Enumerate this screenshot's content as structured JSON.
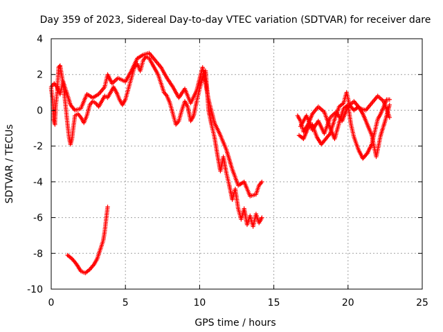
{
  "chart_data": {
    "type": "scatter",
    "title": "Day 359 of 2023, Sidereal Day-to-day VTEC variation (SDTVAR) for receiver dare",
    "xlabel": "GPS time / hours",
    "ylabel": "SDTVAR / TECUs",
    "xlim": [
      0,
      25
    ],
    "ylim": [
      -10,
      4
    ],
    "xticks": [
      0,
      5,
      10,
      15,
      20,
      25
    ],
    "yticks": [
      -10,
      -8,
      -6,
      -4,
      -2,
      0,
      2,
      4
    ],
    "grid": true,
    "marker": "+",
    "color": "#ff0000",
    "series": [
      {
        "name": "SDTVAR",
        "segments": [
          [
            [
              0.0,
              1.2
            ],
            [
              0.1,
              0.6
            ],
            [
              0.15,
              -0.5
            ],
            [
              0.25,
              -0.8
            ],
            [
              0.3,
              0.2
            ],
            [
              0.4,
              1.0
            ],
            [
              0.5,
              2.4
            ],
            [
              0.6,
              2.5
            ],
            [
              0.7,
              2.0
            ],
            [
              0.8,
              1.5
            ],
            [
              0.9,
              0.8
            ],
            [
              1.0,
              0.0
            ],
            [
              1.1,
              -0.8
            ],
            [
              1.2,
              -1.5
            ],
            [
              1.3,
              -1.9
            ],
            [
              1.4,
              -1.6
            ],
            [
              1.5,
              -0.9
            ],
            [
              1.6,
              -0.3
            ],
            [
              1.8,
              -0.2
            ],
            [
              2.0,
              -0.4
            ],
            [
              2.2,
              -0.7
            ],
            [
              2.4,
              -0.3
            ],
            [
              2.6,
              0.3
            ],
            [
              2.8,
              0.5
            ],
            [
              3.0,
              0.4
            ],
            [
              3.2,
              0.2
            ],
            [
              3.4,
              0.5
            ],
            [
              3.6,
              0.8
            ],
            [
              3.8,
              0.7
            ],
            [
              4.0,
              1.0
            ],
            [
              4.2,
              1.3
            ],
            [
              4.4,
              1.0
            ],
            [
              4.6,
              0.6
            ],
            [
              4.8,
              0.3
            ],
            [
              5.0,
              0.6
            ],
            [
              5.2,
              1.2
            ],
            [
              5.4,
              1.8
            ],
            [
              5.6,
              2.4
            ],
            [
              5.8,
              2.6
            ],
            [
              6.0,
              2.2
            ],
            [
              6.2,
              2.8
            ],
            [
              6.4,
              3.0
            ],
            [
              6.6,
              2.9
            ],
            [
              6.8,
              2.6
            ],
            [
              7.0,
              2.3
            ],
            [
              7.2,
              2.0
            ],
            [
              7.4,
              1.5
            ],
            [
              7.6,
              1.0
            ],
            [
              7.8,
              0.8
            ],
            [
              8.0,
              0.4
            ],
            [
              8.2,
              -0.2
            ],
            [
              8.4,
              -0.8
            ],
            [
              8.6,
              -0.6
            ],
            [
              8.8,
              0.0
            ],
            [
              9.0,
              0.5
            ],
            [
              9.2,
              0.2
            ],
            [
              9.4,
              -0.6
            ],
            [
              9.6,
              -0.3
            ],
            [
              9.8,
              0.5
            ],
            [
              10.0,
              1.2
            ],
            [
              10.2,
              1.8
            ],
            [
              10.4,
              2.2
            ],
            [
              10.5,
              1.2
            ],
            [
              10.6,
              0.0
            ],
            [
              10.8,
              -0.8
            ],
            [
              11.0,
              -1.5
            ],
            [
              11.2,
              -2.5
            ],
            [
              11.4,
              -3.4
            ],
            [
              11.6,
              -2.6
            ],
            [
              11.8,
              -3.5
            ],
            [
              12.0,
              -4.2
            ],
            [
              12.2,
              -5.0
            ],
            [
              12.4,
              -4.4
            ],
            [
              12.6,
              -5.5
            ],
            [
              12.8,
              -6.1
            ],
            [
              13.0,
              -5.5
            ],
            [
              13.2,
              -6.4
            ],
            [
              13.4,
              -5.9
            ],
            [
              13.6,
              -6.5
            ],
            [
              13.8,
              -5.8
            ],
            [
              14.0,
              -6.3
            ],
            [
              14.2,
              -6.0
            ]
          ],
          [
            [
              0.0,
              1.3
            ],
            [
              0.2,
              1.5
            ],
            [
              0.4,
              1.3
            ],
            [
              0.6,
              0.9
            ],
            [
              0.8,
              1.6
            ],
            [
              1.0,
              1.1
            ],
            [
              1.3,
              0.3
            ],
            [
              1.6,
              0.0
            ],
            [
              2.0,
              0.1
            ],
            [
              2.4,
              0.9
            ],
            [
              2.8,
              0.7
            ],
            [
              3.2,
              0.9
            ],
            [
              3.6,
              1.3
            ],
            [
              3.8,
              2.0
            ],
            [
              4.1,
              1.5
            ],
            [
              4.5,
              1.8
            ],
            [
              5.0,
              1.6
            ],
            [
              5.4,
              2.2
            ],
            [
              5.8,
              2.9
            ],
            [
              6.2,
              3.1
            ],
            [
              6.6,
              3.2
            ],
            [
              7.0,
              2.8
            ],
            [
              7.4,
              2.4
            ],
            [
              7.8,
              1.8
            ],
            [
              8.2,
              1.3
            ],
            [
              8.6,
              0.7
            ],
            [
              9.0,
              1.2
            ],
            [
              9.4,
              0.4
            ],
            [
              9.8,
              1.1
            ],
            [
              10.2,
              2.4
            ],
            [
              10.6,
              0.6
            ],
            [
              11.0,
              -0.7
            ],
            [
              11.4,
              -1.4
            ],
            [
              11.8,
              -2.2
            ],
            [
              12.2,
              -3.3
            ],
            [
              12.6,
              -4.2
            ],
            [
              13.0,
              -4.0
            ],
            [
              13.4,
              -4.8
            ],
            [
              13.8,
              -4.7
            ],
            [
              14.0,
              -4.2
            ],
            [
              14.2,
              -4.0
            ]
          ],
          [
            [
              1.1,
              -8.1
            ],
            [
              1.4,
              -8.3
            ],
            [
              1.7,
              -8.6
            ],
            [
              2.0,
              -9.0
            ],
            [
              2.3,
              -9.1
            ],
            [
              2.6,
              -8.9
            ],
            [
              2.9,
              -8.6
            ],
            [
              3.1,
              -8.3
            ],
            [
              3.3,
              -7.8
            ],
            [
              3.5,
              -7.3
            ],
            [
              3.6,
              -6.8
            ],
            [
              3.7,
              -6.1
            ],
            [
              3.8,
              -5.4
            ]
          ],
          [
            [
              16.6,
              -0.3
            ],
            [
              16.8,
              -0.6
            ],
            [
              17.0,
              -1.2
            ],
            [
              17.3,
              -0.8
            ],
            [
              17.6,
              -0.2
            ],
            [
              18.0,
              0.2
            ],
            [
              18.4,
              -0.1
            ],
            [
              18.8,
              -1.0
            ],
            [
              19.1,
              -1.6
            ],
            [
              19.4,
              -0.7
            ],
            [
              19.7,
              0.1
            ],
            [
              20.0,
              0.3
            ],
            [
              20.2,
              -0.8
            ],
            [
              20.4,
              -1.5
            ],
            [
              20.7,
              -2.2
            ],
            [
              21.0,
              -2.7
            ],
            [
              21.3,
              -2.4
            ],
            [
              21.6,
              -1.9
            ],
            [
              21.8,
              -1.2
            ],
            [
              22.0,
              -0.5
            ],
            [
              22.2,
              -0.2
            ],
            [
              22.4,
              0.2
            ],
            [
              22.6,
              0.6
            ],
            [
              22.8,
              0.6
            ]
          ],
          [
            [
              16.7,
              -1.4
            ],
            [
              17.0,
              -1.6
            ],
            [
              17.3,
              -1.0
            ],
            [
              17.6,
              -0.8
            ],
            [
              17.9,
              -1.5
            ],
            [
              18.2,
              -1.9
            ],
            [
              18.5,
              -1.6
            ],
            [
              18.8,
              -1.3
            ],
            [
              19.1,
              -0.5
            ],
            [
              19.4,
              0.2
            ],
            [
              19.7,
              0.4
            ],
            [
              19.9,
              1.0
            ],
            [
              20.1,
              0.3
            ],
            [
              20.4,
              0.0
            ],
            [
              20.7,
              0.2
            ],
            [
              21.0,
              -0.2
            ],
            [
              21.3,
              -0.8
            ],
            [
              21.6,
              -1.4
            ],
            [
              21.9,
              -2.6
            ],
            [
              22.2,
              -1.4
            ],
            [
              22.5,
              -0.6
            ],
            [
              22.8,
              0.3
            ]
          ],
          [
            [
              16.8,
              -0.9
            ],
            [
              17.2,
              -0.3
            ],
            [
              17.6,
              -1.1
            ],
            [
              18.0,
              -0.6
            ],
            [
              18.4,
              -1.3
            ],
            [
              18.8,
              -0.4
            ],
            [
              19.2,
              -0.1
            ],
            [
              19.6,
              -0.6
            ],
            [
              20.0,
              0.2
            ],
            [
              20.4,
              0.5
            ],
            [
              20.8,
              0.1
            ],
            [
              21.2,
              0.0
            ],
            [
              21.6,
              0.4
            ],
            [
              22.0,
              0.8
            ],
            [
              22.4,
              0.5
            ],
            [
              22.8,
              -0.4
            ]
          ]
        ]
      }
    ]
  }
}
